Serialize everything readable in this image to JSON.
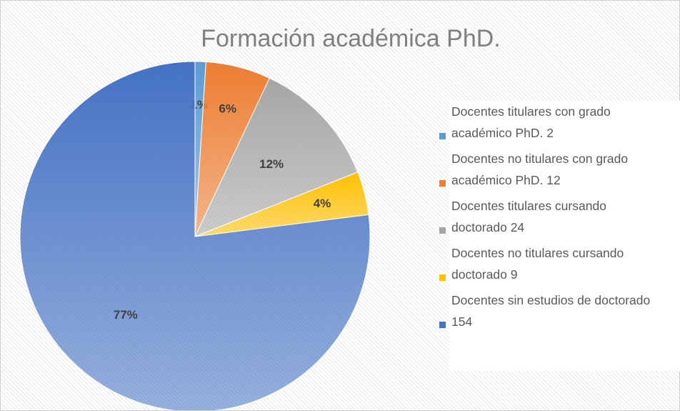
{
  "chart_data": {
    "type": "pie",
    "title": "Formación académica PhD.",
    "categories": [
      "Docentes titulares con grado académico PhD.   2",
      "Docentes no titulares con grado académico PhD.   12",
      "Docentes titulares cursando doctorado   24",
      "Docentes no titulares cursando doctorado   9",
      "Docentes sin estudios de doctorado   154"
    ],
    "values": [
      1,
      6,
      12,
      4,
      77
    ],
    "value_labels": [
      "1%",
      "6%",
      "12%",
      "4%",
      "77%"
    ],
    "colors": [
      "#5b9bd5",
      "#ed7d31",
      "#a5a5a5",
      "#ffc000",
      "#4472c4"
    ],
    "legend": "right"
  }
}
